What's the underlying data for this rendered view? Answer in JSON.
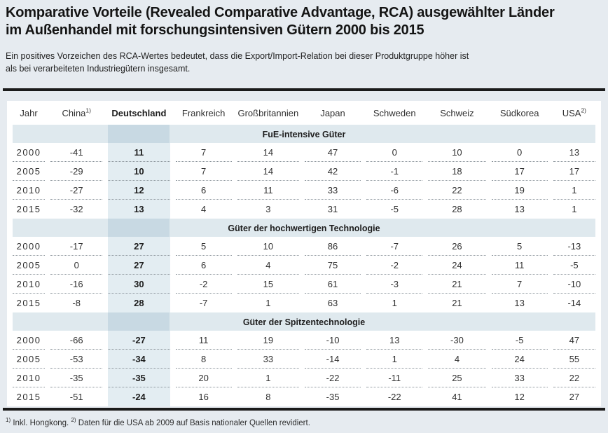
{
  "title": {
    "line1": "Komparative Vorteile (Revealed Comparative Advantage, RCA) ausgewählter Länder",
    "line2": "im Außenhandel mit forschungsintensiven Gütern 2000 bis 2015"
  },
  "subtitle": {
    "line1": "Ein positives Vorzeichen des RCA-Wertes bedeutet, dass die Export/Import-Relation bei dieser Produktgruppe höher ist",
    "line2": "als bei verarbeiteten Industriegütern insgesamt."
  },
  "table": {
    "highlight_index": 2,
    "columns": [
      {
        "label": "Jahr",
        "sup": ""
      },
      {
        "label": "China",
        "sup": "1)"
      },
      {
        "label": "Deutschland",
        "sup": ""
      },
      {
        "label": "Frankreich",
        "sup": ""
      },
      {
        "label": "Großbritannien",
        "sup": ""
      },
      {
        "label": "Japan",
        "sup": ""
      },
      {
        "label": "Schweden",
        "sup": ""
      },
      {
        "label": "Schweiz",
        "sup": ""
      },
      {
        "label": "Südkorea",
        "sup": ""
      },
      {
        "label": "USA",
        "sup": "2)"
      }
    ],
    "sections": [
      {
        "label": "FuE-intensive Güter",
        "rows": [
          {
            "year": "2000",
            "values": [
              "-41",
              "11",
              "7",
              "14",
              "47",
              "0",
              "10",
              "0",
              "13"
            ]
          },
          {
            "year": "2005",
            "values": [
              "-29",
              "10",
              "7",
              "14",
              "42",
              "-1",
              "18",
              "17",
              "17"
            ]
          },
          {
            "year": "2010",
            "values": [
              "-27",
              "12",
              "6",
              "11",
              "33",
              "-6",
              "22",
              "19",
              "1"
            ]
          },
          {
            "year": "2015",
            "values": [
              "-32",
              "13",
              "4",
              "3",
              "31",
              "-5",
              "28",
              "13",
              "1"
            ]
          }
        ]
      },
      {
        "label": "Güter der hochwertigen Technologie",
        "rows": [
          {
            "year": "2000",
            "values": [
              "-17",
              "27",
              "5",
              "10",
              "86",
              "-7",
              "26",
              "5",
              "-13"
            ]
          },
          {
            "year": "2005",
            "values": [
              "0",
              "27",
              "6",
              "4",
              "75",
              "-2",
              "24",
              "11",
              "-5"
            ]
          },
          {
            "year": "2010",
            "values": [
              "-16",
              "30",
              "-2",
              "15",
              "61",
              "-3",
              "21",
              "7",
              "-10"
            ]
          },
          {
            "year": "2015",
            "values": [
              "-8",
              "28",
              "-7",
              "1",
              "63",
              "1",
              "21",
              "13",
              "-14"
            ]
          }
        ]
      },
      {
        "label": "Güter der Spitzentechnologie",
        "rows": [
          {
            "year": "2000",
            "values": [
              "-66",
              "-27",
              "11",
              "19",
              "-10",
              "13",
              "-30",
              "-5",
              "47"
            ]
          },
          {
            "year": "2005",
            "values": [
              "-53",
              "-34",
              "8",
              "33",
              "-14",
              "1",
              "4",
              "24",
              "55"
            ]
          },
          {
            "year": "2010",
            "values": [
              "-35",
              "-35",
              "20",
              "1",
              "-22",
              "-11",
              "25",
              "33",
              "22"
            ]
          },
          {
            "year": "2015",
            "values": [
              "-51",
              "-24",
              "16",
              "8",
              "-35",
              "-22",
              "41",
              "12",
              "27"
            ]
          }
        ]
      }
    ]
  },
  "footnote": {
    "parts": [
      {
        "sup": "1)",
        "text": " Inkl. Hongkong. "
      },
      {
        "sup": "2)",
        "text": " Daten für die USA ab 2009 auf Basis nationaler Quellen revidiert."
      }
    ]
  },
  "colors": {
    "page_bg": "#e6ebf0",
    "panel_bg": "#ffffff",
    "section_band": "#dfe9ee",
    "highlight_col": "#e3edf2",
    "highlight_band": "#c8d9e3",
    "rule": "#1b1b1b",
    "dotted_line": "#8b949b",
    "text": "#2a2a2a"
  }
}
